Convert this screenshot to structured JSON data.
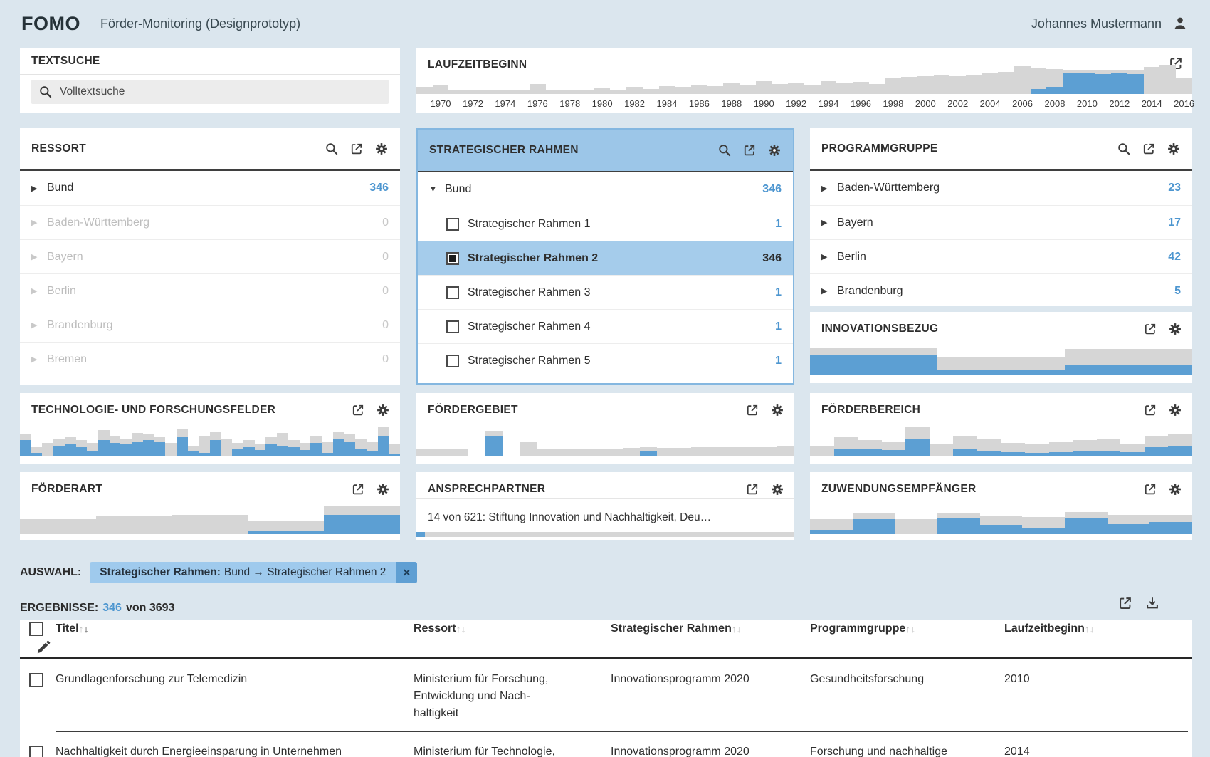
{
  "header": {
    "logo": "FOMO",
    "app_title": "Förder-Monitoring (Designprototyp)",
    "user_name": "Johannes Mustermann"
  },
  "panels": {
    "textsuche": {
      "title": "TEXTSUCHE",
      "placeholder": "Volltextsuche"
    },
    "laufzeitbeginn": {
      "title": "LAUFZEITBEGINN"
    },
    "ressort": {
      "title": "RESSORT",
      "rows": [
        {
          "label": "Bund",
          "count": "346",
          "arrow": "right",
          "count_style": "accent"
        },
        {
          "label": "Baden-Württemberg",
          "count": "0",
          "arrow": "right",
          "dim": true,
          "count_style": "dim"
        },
        {
          "label": "Bayern",
          "count": "0",
          "arrow": "right",
          "dim": true,
          "count_style": "dim"
        },
        {
          "label": "Berlin",
          "count": "0",
          "arrow": "right",
          "dim": true,
          "count_style": "dim"
        },
        {
          "label": "Brandenburg",
          "count": "0",
          "arrow": "right",
          "dim": true,
          "count_style": "dim"
        },
        {
          "label": "Bremen",
          "count": "0",
          "arrow": "right",
          "dim": true,
          "count_style": "dim"
        }
      ]
    },
    "strategischer_rahmen": {
      "title": "STRATEGISCHER RAHMEN",
      "rows": [
        {
          "label": "Bund",
          "count": "346",
          "arrow": "down",
          "count_style": "accent"
        },
        {
          "label": "Strategischer Rahmen 1",
          "count": "1",
          "checkbox": "empty",
          "child": true,
          "count_style": "accent"
        },
        {
          "label": "Strategischer Rahmen 2",
          "count": "346",
          "checkbox": "filled",
          "child": true,
          "selected": true,
          "count_style": "dark"
        },
        {
          "label": "Strategischer Rahmen 3",
          "count": "1",
          "checkbox": "empty",
          "child": true,
          "count_style": "accent"
        },
        {
          "label": "Strategischer Rahmen 4",
          "count": "1",
          "checkbox": "empty",
          "child": true,
          "count_style": "accent"
        },
        {
          "label": "Strategischer Rahmen 5",
          "count": "1",
          "checkbox": "empty",
          "child": true,
          "count_style": "accent"
        }
      ]
    },
    "programmgruppe": {
      "title": "PROGRAMMGRUPPE",
      "rows": [
        {
          "label": "Baden-Württemberg",
          "count": "23",
          "arrow": "right",
          "count_style": "accent"
        },
        {
          "label": "Bayern",
          "count": "17",
          "arrow": "right",
          "count_style": "accent"
        },
        {
          "label": "Berlin",
          "count": "42",
          "arrow": "right",
          "count_style": "accent"
        },
        {
          "label": "Brandenburg",
          "count": "5",
          "arrow": "right",
          "count_style": "accent"
        }
      ]
    },
    "innovationsbezug": {
      "title": "INNOVATIONSBEZUG"
    },
    "technologie": {
      "title": "TECHNOLOGIE- UND FORSCHUNGSFELDER"
    },
    "foerdergebiet": {
      "title": "FÖRDERGEBIET"
    },
    "foerderbereich": {
      "title": "FÖRDERBEREICH"
    },
    "foerderart": {
      "title": "FÖRDERART"
    },
    "ansprechpartner": {
      "title": "ANSPRECHPARTNER",
      "value": "14 von 621: Stiftung Innovation und Nachhaltigkeit, Deu…"
    },
    "zuwendungsempfaenger": {
      "title": "ZUWENDUNGSEMPFÄNGER"
    }
  },
  "auswahl": {
    "label": "AUSWAHL:",
    "chip_category": "Strategischer Rahmen:",
    "chip_value": "Bund → Strategischer Rahmen 2",
    "close_glyph": "✕"
  },
  "ergebnisse": {
    "label": "ERGEBNISSE:",
    "count": "346",
    "total_suffix": "von 3693"
  },
  "table": {
    "columns": [
      {
        "label": "Titel",
        "sort_active": "desc"
      },
      {
        "label": "Ressort",
        "sort_active": null
      },
      {
        "label": "Strategischer Rahmen",
        "sort_active": null
      },
      {
        "label": "Programmgruppe",
        "sort_active": null
      },
      {
        "label": "Laufzeitbeginn",
        "sort_active": null
      }
    ],
    "rows": [
      {
        "titel": "Grundlagenforschung zur Telemedizin",
        "ressort_lines": [
          "Ministerium für Forschung,",
          "Entwicklung und Nach-",
          "haltigkeit"
        ],
        "strategischer_rahmen": "Innovationsprogramm 2020",
        "programmgruppe_lines": [
          "Gesundheitsforschung"
        ],
        "laufzeitbeginn": "2010"
      },
      {
        "titel": "Nachhaltigkeit durch Energieeinsparung in Unternehmen",
        "ressort_lines": [
          "Ministerium für Technologie,"
        ],
        "strategischer_rahmen": "Innovationsprogramm 2020",
        "programmgruppe_lines": [
          "Forschung und nachhaltige"
        ],
        "laufzeitbeginn": "2014"
      }
    ]
  },
  "colors": {
    "page_bg": "#dbe6ee",
    "accent_blue": "#4d96d0",
    "bar_blue": "#5c9fd3",
    "bar_gray": "#d6d6d6",
    "panel_header_blue": "#9cc6e8",
    "selected_row_blue": "#a5cceb",
    "chip_blue": "#9fcaed",
    "chip_close_blue": "#5f9fd3"
  },
  "chart_data": [
    {
      "id": "laufzeitbeginn",
      "type": "bar",
      "title": "LAUFZEITBEGINN",
      "x": [
        1969,
        1970,
        1971,
        1972,
        1973,
        1974,
        1975,
        1976,
        1977,
        1978,
        1979,
        1980,
        1981,
        1982,
        1983,
        1984,
        1985,
        1986,
        1987,
        1988,
        1989,
        1990,
        1991,
        1992,
        1993,
        1994,
        1995,
        1996,
        1997,
        1998,
        1999,
        2000,
        2001,
        2002,
        2003,
        2004,
        2005,
        2006,
        2007,
        2008,
        2009,
        2010,
        2011,
        2012,
        2013,
        2014,
        2015,
        2016
      ],
      "series": [
        {
          "name": "gesamt",
          "values": [
            8,
            11,
            4,
            4,
            4,
            4,
            4,
            12,
            4,
            5,
            5,
            7,
            5,
            8,
            6,
            9,
            8,
            11,
            9,
            13,
            11,
            15,
            12,
            13,
            11,
            15,
            13,
            14,
            12,
            18,
            20,
            21,
            22,
            21,
            22,
            24,
            26,
            33,
            30,
            29,
            28,
            28,
            28,
            28,
            28,
            32,
            34,
            18
          ]
        },
        {
          "name": "auswahl",
          "values": [
            0,
            0,
            0,
            0,
            0,
            0,
            0,
            0,
            0,
            0,
            0,
            0,
            0,
            0,
            0,
            0,
            0,
            0,
            0,
            0,
            0,
            0,
            0,
            0,
            0,
            0,
            0,
            0,
            0,
            0,
            0,
            0,
            0,
            0,
            0,
            0,
            0,
            0,
            6,
            8,
            24,
            24,
            23,
            24,
            23,
            0,
            0,
            0
          ]
        }
      ],
      "tick_labels": [
        "1970",
        "1972",
        "1974",
        "1976",
        "1978",
        "1980",
        "1982",
        "1984",
        "1986",
        "1988",
        "1990",
        "1992",
        "1994",
        "1996",
        "1998",
        "2000",
        "2002",
        "2004",
        "2006",
        "2008",
        "2010",
        "2012",
        "2014",
        "2016"
      ],
      "ylim": [
        0,
        40
      ]
    },
    {
      "id": "innovationsbezug",
      "type": "bar",
      "title": "INNOVATIONSBEZUG",
      "series": [
        {
          "name": "gesamt",
          "values": [
            41,
            27,
            39
          ]
        },
        {
          "name": "auswahl",
          "values": [
            29,
            6,
            14
          ]
        }
      ],
      "ylim": [
        0,
        45
      ]
    },
    {
      "id": "technologie_und_forschungsfelder",
      "type": "bar",
      "title": "TECHNOLOGIE- UND FORSCHUNGSFELDER",
      "series": [
        {
          "name": "gesamt",
          "values": [
            30,
            12,
            18,
            24,
            26,
            22,
            18,
            36,
            28,
            24,
            32,
            30,
            26,
            18,
            38,
            14,
            28,
            34,
            24,
            18,
            22,
            16,
            26,
            32,
            22,
            18,
            28,
            20,
            34,
            30,
            24,
            20,
            40,
            16
          ]
        },
        {
          "name": "auswahl",
          "values": [
            22,
            4,
            0,
            14,
            16,
            12,
            6,
            22,
            18,
            16,
            20,
            22,
            20,
            0,
            26,
            6,
            4,
            22,
            0,
            10,
            12,
            8,
            16,
            14,
            12,
            8,
            18,
            4,
            24,
            20,
            10,
            6,
            28,
            2
          ]
        }
      ],
      "ylim": [
        0,
        45
      ]
    },
    {
      "id": "foerdergebiet",
      "type": "bar",
      "title": "FÖRDERGEBIET",
      "series": [
        {
          "name": "gesamt",
          "values": [
            9,
            9,
            9,
            0,
            35,
            0,
            20,
            9,
            9,
            9,
            10,
            10,
            11,
            12,
            11,
            11,
            12,
            12,
            12,
            13,
            13,
            14
          ]
        },
        {
          "name": "auswahl",
          "values": [
            0,
            0,
            0,
            0,
            28,
            0,
            0,
            0,
            0,
            0,
            0,
            0,
            0,
            6,
            0,
            0,
            0,
            0,
            0,
            0,
            0,
            0
          ]
        }
      ],
      "ylim": [
        0,
        45
      ]
    },
    {
      "id": "foerderbereich",
      "type": "bar",
      "title": "FÖRDERBEREICH",
      "series": [
        {
          "name": "gesamt",
          "values": [
            14,
            26,
            22,
            20,
            40,
            16,
            28,
            24,
            18,
            16,
            20,
            22,
            24,
            16,
            28,
            30
          ]
        },
        {
          "name": "auswahl",
          "values": [
            0,
            10,
            9,
            8,
            24,
            0,
            10,
            6,
            5,
            4,
            5,
            6,
            7,
            5,
            12,
            14
          ]
        }
      ],
      "ylim": [
        0,
        45
      ]
    },
    {
      "id": "foerderart",
      "type": "bar",
      "title": "FÖRDERART",
      "series": [
        {
          "name": "gesamt",
          "values": [
            20,
            24,
            26,
            17,
            38
          ]
        },
        {
          "name": "auswahl",
          "values": [
            0,
            0,
            0,
            4,
            26
          ]
        }
      ],
      "ylim": [
        0,
        45
      ]
    },
    {
      "id": "zuwendungsempfaenger",
      "type": "bar",
      "title": "ZUWENDUNGSEMPFÄNGER",
      "series": [
        {
          "name": "gesamt",
          "values": [
            20,
            28,
            20,
            29,
            25,
            23,
            30,
            26,
            26
          ]
        },
        {
          "name": "auswahl",
          "values": [
            6,
            20,
            0,
            21,
            12,
            8,
            21,
            13,
            16
          ]
        }
      ],
      "ylim": [
        0,
        45
      ]
    },
    {
      "id": "ansprechpartner",
      "type": "bar",
      "title": "ANSPRECHPARTNER",
      "categories": [
        "Ansprechpartner"
      ],
      "series": [
        {
          "name": "gesamt",
          "values": [
            621
          ]
        },
        {
          "name": "auswahl",
          "values": [
            14
          ]
        }
      ],
      "label": "14 von 621: Stiftung Innovation und Nachhaltigkeit, Deu…"
    }
  ]
}
